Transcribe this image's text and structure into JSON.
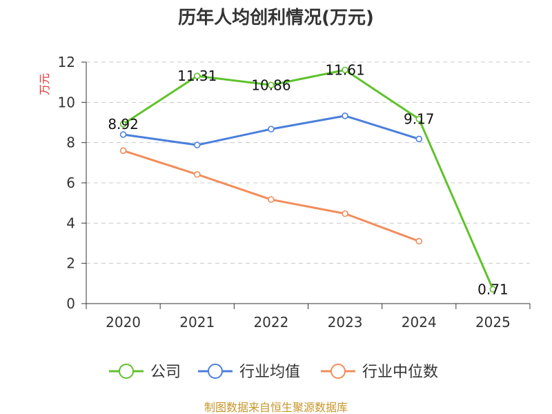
{
  "chart_data": {
    "type": "line",
    "title": "历年人均创利情况(万元)",
    "ylabel": "万元",
    "xlabel": "",
    "categories": [
      "2020",
      "2021",
      "2022",
      "2023",
      "2024",
      "2025"
    ],
    "ylim": [
      0,
      12
    ],
    "yticks": [
      0,
      2,
      4,
      6,
      8,
      10,
      12
    ],
    "grid": true,
    "legend_position": "bottom",
    "series": [
      {
        "name": "公司",
        "color": "#5ec22a",
        "values": [
          8.92,
          11.31,
          10.86,
          11.61,
          9.17,
          0.71
        ],
        "labels": [
          "8.92",
          "11.31",
          "10.86",
          "11.61",
          "9.17",
          "0.71"
        ]
      },
      {
        "name": "行业均值",
        "color": "#4a7fdb",
        "values": [
          8.4,
          7.88,
          8.67,
          9.33,
          8.18,
          null
        ]
      },
      {
        "name": "行业中位数",
        "color": "#f28c5a",
        "values": [
          7.6,
          6.42,
          5.17,
          4.47,
          3.1,
          null
        ]
      }
    ],
    "source": "制图数据来自恒生聚源数据库"
  }
}
